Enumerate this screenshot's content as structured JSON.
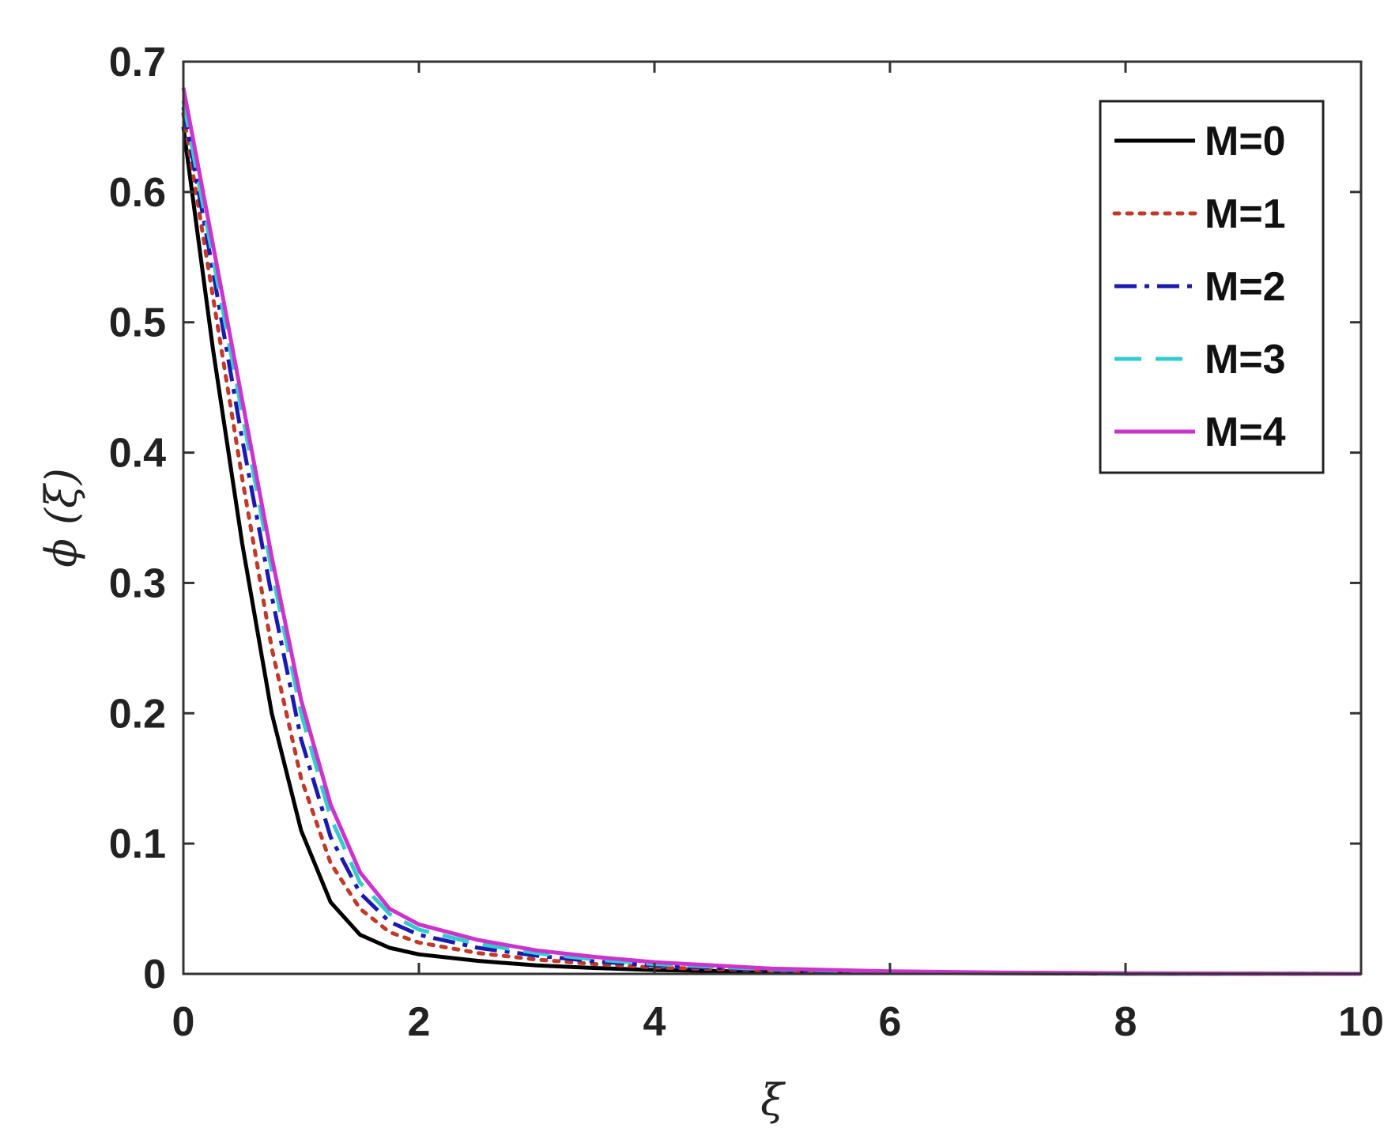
{
  "chart_data": {
    "type": "line",
    "xlabel": "ξ",
    "ylabel": "ϕ (ξ)",
    "xlim": [
      0,
      10
    ],
    "ylim": [
      0,
      0.7
    ],
    "x_ticks": [
      0,
      2,
      4,
      6,
      8,
      10
    ],
    "y_ticks": [
      0,
      0.1,
      0.2,
      0.3,
      0.4,
      0.5,
      0.6,
      0.7
    ],
    "grid": false,
    "legend_position": "top-right",
    "x": [
      0,
      0.25,
      0.5,
      0.75,
      1.0,
      1.25,
      1.5,
      1.75,
      2.0,
      2.5,
      3.0,
      3.5,
      4.0,
      5.0,
      6.0,
      7.0,
      8.0,
      9.0,
      10.0
    ],
    "series": [
      {
        "name": "M=0",
        "color": "#000000",
        "dash": "solid",
        "values": [
          0.65,
          0.48,
          0.33,
          0.2,
          0.11,
          0.055,
          0.03,
          0.02,
          0.015,
          0.01,
          0.0065,
          0.0045,
          0.003,
          0.0015,
          0.0008,
          0.0004,
          0.0002,
          0.0001,
          0.0
        ]
      },
      {
        "name": "M=1",
        "color": "#c0392b",
        "dash": "dotted",
        "values": [
          0.66,
          0.52,
          0.38,
          0.25,
          0.15,
          0.085,
          0.05,
          0.032,
          0.024,
          0.016,
          0.011,
          0.0075,
          0.005,
          0.0025,
          0.0012,
          0.0006,
          0.0003,
          0.0001,
          0.0
        ]
      },
      {
        "name": "M=2",
        "color": "#1a1ab0",
        "dash": "dashdot",
        "values": [
          0.665,
          0.54,
          0.41,
          0.29,
          0.18,
          0.105,
          0.062,
          0.04,
          0.03,
          0.02,
          0.014,
          0.0095,
          0.0065,
          0.003,
          0.0015,
          0.0007,
          0.0003,
          0.0001,
          0.0
        ]
      },
      {
        "name": "M=3",
        "color": "#33cccc",
        "dash": "dashed",
        "values": [
          0.67,
          0.55,
          0.43,
          0.31,
          0.2,
          0.12,
          0.07,
          0.046,
          0.034,
          0.023,
          0.016,
          0.011,
          0.0075,
          0.0035,
          0.0017,
          0.0008,
          0.0004,
          0.0001,
          0.0
        ]
      },
      {
        "name": "M=4",
        "color": "#cc33cc",
        "dash": "solid",
        "values": [
          0.68,
          0.56,
          0.44,
          0.32,
          0.21,
          0.13,
          0.078,
          0.05,
          0.038,
          0.026,
          0.018,
          0.013,
          0.009,
          0.004,
          0.002,
          0.001,
          0.0005,
          0.0002,
          0.0
        ]
      }
    ]
  }
}
